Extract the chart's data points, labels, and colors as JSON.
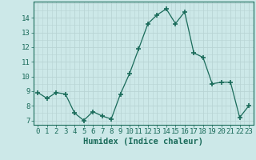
{
  "x": [
    0,
    1,
    2,
    3,
    4,
    5,
    6,
    7,
    8,
    9,
    10,
    11,
    12,
    13,
    14,
    15,
    16,
    17,
    18,
    19,
    20,
    21,
    22,
    23
  ],
  "y": [
    8.9,
    8.5,
    8.9,
    8.8,
    7.5,
    7.0,
    7.6,
    7.3,
    7.1,
    8.8,
    10.2,
    11.9,
    13.6,
    14.2,
    14.6,
    13.6,
    14.4,
    11.6,
    11.3,
    9.5,
    9.6,
    9.6,
    7.2,
    8.0
  ],
  "xlabel": "Humidex (Indice chaleur)",
  "ylim": [
    6.7,
    15.1
  ],
  "xlim": [
    -0.5,
    23.5
  ],
  "yticks": [
    7,
    8,
    9,
    10,
    11,
    12,
    13,
    14
  ],
  "xticks": [
    0,
    1,
    2,
    3,
    4,
    5,
    6,
    7,
    8,
    9,
    10,
    11,
    12,
    13,
    14,
    15,
    16,
    17,
    18,
    19,
    20,
    21,
    22,
    23
  ],
  "line_color": "#1a6b5a",
  "marker_color": "#1a6b5a",
  "bg_color": "#cce8e8",
  "grid_color": "#b8d4d4",
  "axis_color": "#1a6b5a",
  "label_color": "#1a6b5a",
  "tick_color": "#1a6b5a",
  "xlabel_fontsize": 7.5,
  "tick_fontsize": 6.5
}
